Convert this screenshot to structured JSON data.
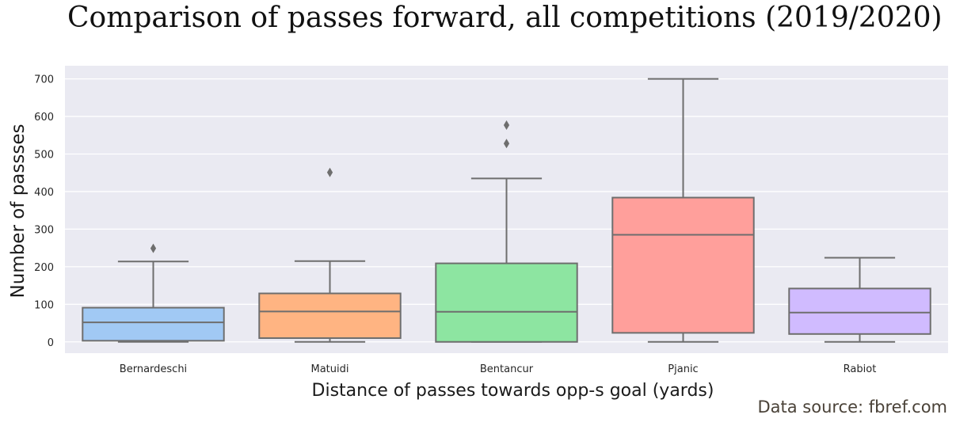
{
  "chart_data": {
    "type": "boxplot",
    "title": "Comparison of passes forward, all competitions (2019/2020)",
    "xlabel": "Distance of passes towards opp-s goal (yards)",
    "ylabel": "Number of passses",
    "ylim": [
      -30,
      735
    ],
    "yticks": [
      0,
      100,
      200,
      300,
      400,
      500,
      600,
      700
    ],
    "grid": true,
    "categories": [
      "Bernardeschi",
      "Matuidi",
      "Bentancur",
      "Pjanic",
      "Rabiot"
    ],
    "boxes": [
      {
        "label": "Bernardeschi",
        "min": 0,
        "q1": 3,
        "median": 52,
        "q3": 91,
        "max": 214,
        "outliers": [
          249
        ],
        "color": "#a1c9f4"
      },
      {
        "label": "Matuidi",
        "min": 0,
        "q1": 10,
        "median": 81,
        "q3": 129,
        "max": 215,
        "outliers": [
          451
        ],
        "color": "#ffb482"
      },
      {
        "label": "Bentancur",
        "min": 0,
        "q1": 0,
        "median": 80,
        "q3": 209,
        "max": 435,
        "outliers": [
          528,
          577
        ],
        "color": "#8de5a1"
      },
      {
        "label": "Pjanic",
        "min": 0,
        "q1": 24,
        "median": 285,
        "q3": 384,
        "max": 700,
        "outliers": [],
        "color": "#ff9f9b"
      },
      {
        "label": "Rabiot",
        "min": 0,
        "q1": 21,
        "median": 78,
        "q3": 142,
        "max": 224,
        "outliers": [],
        "color": "#d0bbff"
      }
    ],
    "background_color": "#eaeaf2",
    "line_color": "#6e6e6e"
  },
  "source_note": "Data source: fbref.com"
}
